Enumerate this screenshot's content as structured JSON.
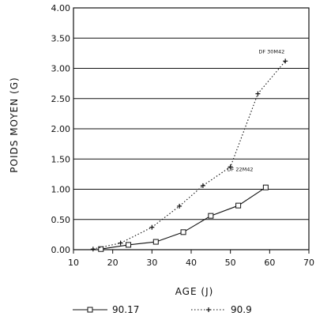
{
  "chart_data": {
    "type": "line",
    "xlabel": "AGE (J)",
    "ylabel": "POIDS MOYEN (G)",
    "xlim": [
      10,
      70
    ],
    "ylim": [
      0,
      4
    ],
    "x_ticks": [
      "10",
      "20",
      "30",
      "40",
      "50",
      "60",
      "70"
    ],
    "y_ticks": [
      "0.00",
      "0.50",
      "1.00",
      "1.50",
      "2.00",
      "2.50",
      "3.00",
      "3.50",
      "4.00"
    ],
    "grid": "horizontal",
    "legend_position": "bottom",
    "series": [
      {
        "name": "90.17",
        "marker": "square",
        "line_style": "solid",
        "color": "#111111",
        "x": [
          17,
          24,
          31,
          38,
          45,
          52,
          59
        ],
        "y": [
          0.01,
          0.08,
          0.13,
          0.29,
          0.56,
          0.73,
          1.03
        ]
      },
      {
        "name": "90.9",
        "marker": "plus",
        "line_style": "dotted",
        "color": "#111111",
        "x": [
          15,
          22,
          30,
          37,
          43,
          50,
          57,
          64
        ],
        "y": [
          0.01,
          0.11,
          0.37,
          0.72,
          1.06,
          1.37,
          2.58,
          3.12
        ]
      }
    ],
    "annotations": [
      {
        "text": "DF 30M42",
        "x": 60.5,
        "y": 3.25
      },
      {
        "text": "DF 22M42",
        "x": 52.5,
        "y": 1.3
      }
    ]
  }
}
